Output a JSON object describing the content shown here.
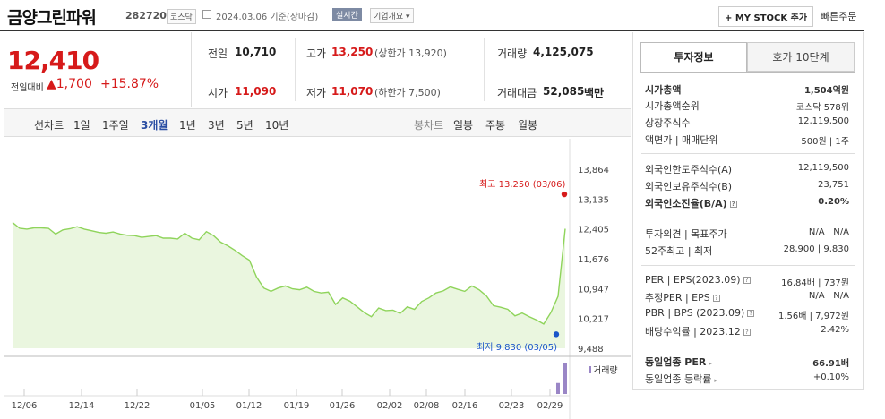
{
  "header": {
    "stock_name": "금양그린파워",
    "stock_code": "282720",
    "market_tag": "코스닥",
    "date_text": "2024.03.06 기준(장마감)",
    "realtime_tag": "실시간",
    "company_overview": "기업개요 ▾",
    "my_stock_button": "+ MY STOCK 추가",
    "quick_order": "빠른주문"
  },
  "price": {
    "current": "12,410",
    "change_label": "전일대비",
    "change_amount": "▲1,700",
    "change_pct": "+15.87%"
  },
  "summary": {
    "prev_close_label": "전일",
    "prev_close": "10,710",
    "high_label": "고가",
    "high": "13,250",
    "upper_limit": "(상한가 13,920)",
    "volume_label": "거래량",
    "volume": "4,125,075",
    "open_label": "시가",
    "open": "11,090",
    "low_label": "저가",
    "low": "11,070",
    "lower_limit": "(하한가 7,500)",
    "amount_label": "거래대금",
    "amount": "52,085",
    "amount_unit": "백만"
  },
  "period_tabs": {
    "line_chart_label": "선차트",
    "items": [
      "1일",
      "1주일",
      "3개월",
      "1년",
      "3년",
      "5년",
      "10년"
    ],
    "selected": "3개월",
    "candle_chart_label": "봉차트",
    "candle_items": [
      "일봉",
      "주봉",
      "월봉"
    ]
  },
  "right_tabs": [
    "투자정보",
    "호가 10단계"
  ],
  "invest_info": {
    "market_cap_label": "시가총액",
    "market_cap": "1,504억원",
    "market_cap_rank_label": "시가총액순위",
    "market_cap_rank": "코스닥 578위",
    "listed_shares_label": "상장주식수",
    "listed_shares": "12,119,500",
    "par_label": "액면가 | 매매단위",
    "par": "500원 | 1주",
    "foreign_limit_label": "외국인한도주식수(A)",
    "foreign_limit": "12,119,500",
    "foreign_hold_label": "외국인보유주식수(B)",
    "foreign_hold": "23,751",
    "foreign_ratio_label": "외국인소진율(B/A)",
    "foreign_ratio": "0.20%",
    "opinion_label": "투자의견 | 목표주가",
    "opinion": "N/A | N/A",
    "week52_label": "52주최고 | 최저",
    "week52": "28,900 | 9,830",
    "per_eps_label": "PER | EPS(2023.09)",
    "per_eps": "16.84배 | 737원",
    "est_per_label": "추정PER | EPS",
    "est_per": "N/A | N/A",
    "pbr_bps_label": "PBR | BPS (2023.09)",
    "pbr_bps": "1.56배 | 7,972원",
    "dividend_label": "배당수익률 | 2023.12",
    "dividend": "2.42%",
    "sector_per_label": "동일업종 PER",
    "sector_per": "66.91배",
    "sector_change_label": "동일업종 등락률",
    "sector_change": "+0.10%"
  },
  "chart_data": {
    "type": "area",
    "x_ticks": [
      "12/06",
      "12/14",
      "12/22",
      "01/05",
      "01/12",
      "01/19",
      "01/26",
      "02/02",
      "02/08",
      "02/16",
      "02/23",
      "02/29"
    ],
    "y_ticks": [
      "13,864",
      "13,135",
      "12,405",
      "11,676",
      "10,947",
      "10,217",
      "9,488"
    ],
    "ylim": [
      9488,
      13864
    ],
    "series": [
      {
        "values": [
          12560,
          12420,
          12400,
          12430,
          12430,
          12420,
          12280,
          12380,
          12410,
          12460,
          12400,
          12360,
          12320,
          12300,
          12330,
          12280,
          12250,
          12240,
          12200,
          12220,
          12240,
          12180,
          12180,
          12160,
          12300,
          12180,
          12140,
          12340,
          12240,
          12080,
          11990,
          11880,
          11750,
          11640,
          11230,
          10960,
          10880,
          10960,
          11010,
          10940,
          10920,
          10980,
          10880,
          10840,
          10860,
          10560,
          10720,
          10640,
          10500,
          10360,
          10260,
          10470,
          10410,
          10420,
          10340,
          10500,
          10440,
          10630,
          10720,
          10840,
          10890,
          10990,
          10930,
          10880,
          11010,
          10920,
          10770,
          10530,
          10490,
          10440,
          10280,
          10350,
          10260,
          10180,
          10080,
          10360,
          10760,
          12410
        ]
      }
    ],
    "high_label": "최고 13,250 (03/06)",
    "low_label": "최저 9,830 (03/05)",
    "volume_label": "거래량",
    "volume_bars": [
      0,
      0,
      0,
      0,
      0,
      0,
      0,
      0,
      0,
      0,
      0,
      0,
      0,
      0,
      0,
      0,
      0,
      0,
      0,
      0,
      0,
      0,
      0,
      0,
      0,
      0,
      0,
      0,
      0,
      0,
      0,
      0,
      0,
      0,
      0,
      0,
      0,
      0,
      0,
      0,
      0,
      0,
      0,
      0,
      0,
      0,
      0,
      0,
      0,
      0,
      0,
      0,
      0,
      0,
      0,
      0,
      0,
      0,
      0,
      0,
      0,
      0,
      0,
      0,
      0,
      0,
      0,
      0,
      0,
      0,
      0,
      0,
      0,
      0,
      0,
      0,
      0.35,
      1.0
    ]
  },
  "colors": {
    "up": "#d61a1a",
    "down": "#1a55c9",
    "line": "#8fd45b",
    "fill": "#eaf6df",
    "volume": "#9a86c6"
  }
}
